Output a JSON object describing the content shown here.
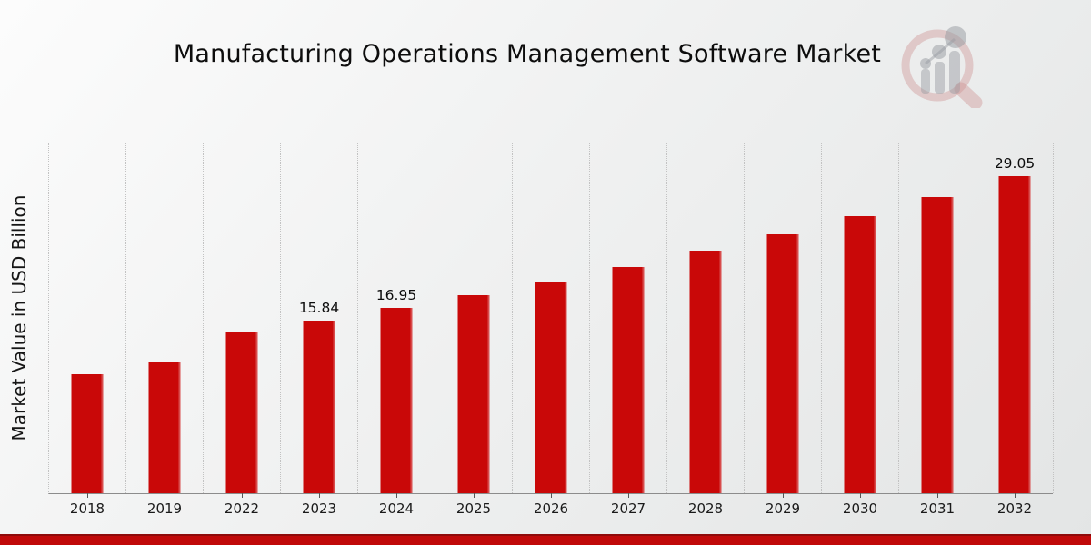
{
  "header": {
    "title": "Manufacturing Operations Management Software Market"
  },
  "branding": {
    "logo_name": "market-research-magnifier-bars-logo"
  },
  "chart_data": {
    "type": "bar",
    "title": "Manufacturing Operations Management Software Market",
    "xlabel": "",
    "ylabel": "Market Value in USD Billion",
    "categories": [
      "2018",
      "2019",
      "2022",
      "2023",
      "2024",
      "2025",
      "2026",
      "2027",
      "2028",
      "2029",
      "2030",
      "2031",
      "2032"
    ],
    "values": [
      10.9,
      12.05,
      14.81,
      15.84,
      16.95,
      18.13,
      19.4,
      20.75,
      22.2,
      23.74,
      25.4,
      27.16,
      29.05
    ],
    "value_labels": [
      "",
      "",
      "",
      "15.84",
      "16.95",
      "",
      "",
      "",
      "",
      "",
      "",
      "",
      "29.05"
    ],
    "ylim": [
      0,
      32.2
    ],
    "bar_color": "#c90808",
    "grid": "vertical-dotted",
    "legend": "none",
    "accent_footer_color": "#c00909"
  }
}
